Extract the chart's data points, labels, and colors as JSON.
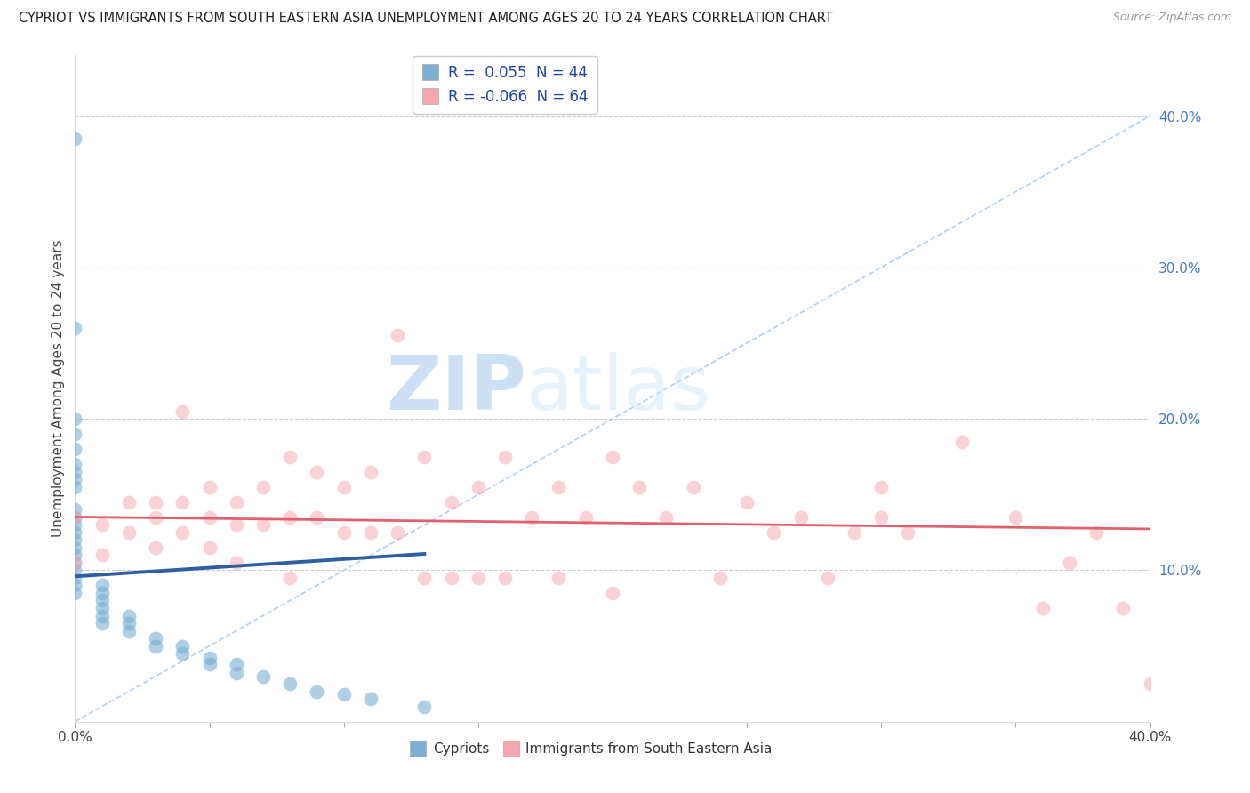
{
  "title": "CYPRIOT VS IMMIGRANTS FROM SOUTH EASTERN ASIA UNEMPLOYMENT AMONG AGES 20 TO 24 YEARS CORRELATION CHART",
  "source": "Source: ZipAtlas.com",
  "ylabel": "Unemployment Among Ages 20 to 24 years",
  "xlim": [
    0.0,
    0.4
  ],
  "ylim": [
    0.0,
    0.44
  ],
  "xticks": [
    0.0,
    0.05,
    0.1,
    0.15,
    0.2,
    0.25,
    0.3,
    0.35,
    0.4
  ],
  "xtick_labels": [
    "0.0%",
    "",
    "",
    "",
    "",
    "",
    "",
    "",
    "40.0%"
  ],
  "yticks_right": [
    0.1,
    0.2,
    0.3,
    0.4
  ],
  "ytick_labels_right": [
    "10.0%",
    "20.0%",
    "30.0%",
    "40.0%"
  ],
  "blue_r": 0.055,
  "blue_n": 44,
  "pink_r": -0.066,
  "pink_n": 64,
  "blue_color": "#7BAFD4",
  "pink_color": "#F4A7B0",
  "blue_line_color": "#2E5FA3",
  "pink_line_color": "#E06070",
  "diag_color": "#AACCEE",
  "watermark_zip": "ZIP",
  "watermark_atlas": "atlas",
  "blue_scatter_x": [
    0.0,
    0.0,
    0.0,
    0.0,
    0.0,
    0.0,
    0.0,
    0.0,
    0.0,
    0.0,
    0.0,
    0.0,
    0.0,
    0.0,
    0.0,
    0.0,
    0.0,
    0.0,
    0.0,
    0.0,
    0.0,
    0.01,
    0.01,
    0.01,
    0.01,
    0.01,
    0.01,
    0.02,
    0.02,
    0.02,
    0.03,
    0.03,
    0.04,
    0.04,
    0.05,
    0.05,
    0.06,
    0.06,
    0.07,
    0.08,
    0.09,
    0.1,
    0.11,
    0.13
  ],
  "blue_scatter_y": [
    0.385,
    0.26,
    0.2,
    0.19,
    0.18,
    0.17,
    0.165,
    0.16,
    0.155,
    0.14,
    0.135,
    0.13,
    0.125,
    0.12,
    0.115,
    0.11,
    0.105,
    0.1,
    0.095,
    0.09,
    0.085,
    0.09,
    0.085,
    0.08,
    0.075,
    0.07,
    0.065,
    0.07,
    0.065,
    0.06,
    0.055,
    0.05,
    0.05,
    0.045,
    0.042,
    0.038,
    0.038,
    0.032,
    0.03,
    0.025,
    0.02,
    0.018,
    0.015,
    0.01
  ],
  "pink_scatter_x": [
    0.0,
    0.0,
    0.01,
    0.01,
    0.02,
    0.02,
    0.03,
    0.03,
    0.03,
    0.04,
    0.04,
    0.04,
    0.05,
    0.05,
    0.05,
    0.06,
    0.06,
    0.06,
    0.07,
    0.07,
    0.08,
    0.08,
    0.08,
    0.09,
    0.09,
    0.1,
    0.1,
    0.11,
    0.11,
    0.12,
    0.12,
    0.13,
    0.13,
    0.14,
    0.14,
    0.15,
    0.15,
    0.16,
    0.16,
    0.17,
    0.18,
    0.18,
    0.19,
    0.2,
    0.2,
    0.21,
    0.22,
    0.23,
    0.24,
    0.25,
    0.26,
    0.27,
    0.28,
    0.29,
    0.3,
    0.3,
    0.31,
    0.33,
    0.35,
    0.36,
    0.37,
    0.38,
    0.39,
    0.4
  ],
  "pink_scatter_y": [
    0.135,
    0.105,
    0.13,
    0.11,
    0.145,
    0.125,
    0.145,
    0.135,
    0.115,
    0.205,
    0.145,
    0.125,
    0.155,
    0.135,
    0.115,
    0.145,
    0.13,
    0.105,
    0.155,
    0.13,
    0.175,
    0.135,
    0.095,
    0.165,
    0.135,
    0.155,
    0.125,
    0.165,
    0.125,
    0.255,
    0.125,
    0.175,
    0.095,
    0.145,
    0.095,
    0.155,
    0.095,
    0.175,
    0.095,
    0.135,
    0.155,
    0.095,
    0.135,
    0.175,
    0.085,
    0.155,
    0.135,
    0.155,
    0.095,
    0.145,
    0.125,
    0.135,
    0.095,
    0.125,
    0.135,
    0.155,
    0.125,
    0.185,
    0.135,
    0.075,
    0.105,
    0.125,
    0.075,
    0.025
  ],
  "background_color": "#FFFFFF"
}
